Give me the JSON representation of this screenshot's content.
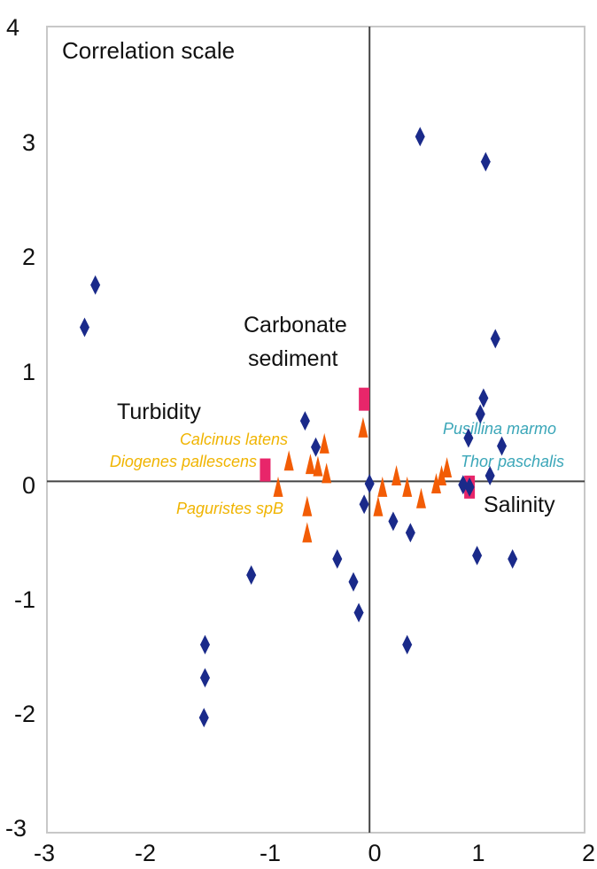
{
  "chart_data": {
    "type": "scatter",
    "title": "Correlation scale",
    "xlim": [
      -3,
      2
    ],
    "ylim": [
      -3,
      4
    ],
    "x_ticks": [
      "-3",
      "-2",
      "-1",
      "0",
      "1",
      "2"
    ],
    "y_ticks": [
      "4",
      "3",
      "2",
      "1",
      "0",
      "-1",
      "-2",
      "-3"
    ],
    "colors": {
      "sites": "#1a2a8a",
      "species": "#f25c05",
      "vectors": "#e8266a",
      "species_label_yellow": "#f0b400",
      "species_label_teal": "#3aa6b8",
      "axis": "#444444",
      "text": "#111111"
    },
    "series": [
      {
        "marker": "diamond",
        "points": [
          [
            -2.65,
            1.35
          ],
          [
            -2.55,
            1.72
          ],
          [
            -1.53,
            -1.43
          ],
          [
            -1.53,
            -1.72
          ],
          [
            -1.54,
            -2.07
          ],
          [
            -1.1,
            -0.82
          ],
          [
            -0.6,
            0.53
          ],
          [
            -0.5,
            0.3
          ],
          [
            -0.3,
            -0.68
          ],
          [
            -0.15,
            -0.88
          ],
          [
            -0.1,
            -1.15
          ],
          [
            -0.05,
            -0.2
          ],
          [
            0.0,
            -0.02
          ],
          [
            0.22,
            -0.35
          ],
          [
            0.35,
            -1.43
          ],
          [
            0.38,
            -0.45
          ],
          [
            0.47,
            3.02
          ],
          [
            0.87,
            -0.03
          ],
          [
            0.92,
            0.38
          ],
          [
            0.93,
            -0.05
          ],
          [
            1.0,
            -0.65
          ],
          [
            1.03,
            0.59
          ],
          [
            1.06,
            0.73
          ],
          [
            1.08,
            2.8
          ],
          [
            1.12,
            0.05
          ],
          [
            1.17,
            1.25
          ],
          [
            1.23,
            0.31
          ],
          [
            1.33,
            -0.68
          ]
        ]
      },
      {
        "marker": "triangle",
        "points": [
          [
            -0.75,
            0.18
          ],
          [
            -0.55,
            0.15
          ],
          [
            -0.85,
            -0.05
          ],
          [
            -0.58,
            -0.22
          ],
          [
            -0.58,
            -0.45
          ],
          [
            -0.48,
            0.13
          ],
          [
            -0.42,
            0.33
          ],
          [
            -0.4,
            0.07
          ],
          [
            -0.06,
            0.47
          ],
          [
            0.08,
            -0.22
          ],
          [
            0.12,
            -0.05
          ],
          [
            0.25,
            0.05
          ],
          [
            0.35,
            -0.05
          ],
          [
            0.48,
            -0.15
          ],
          [
            0.62,
            -0.02
          ],
          [
            0.67,
            0.05
          ],
          [
            0.72,
            0.12
          ]
        ]
      }
    ],
    "vectors": [
      {
        "label_lines": [
          "Carbonate",
          "sediment"
        ],
        "x": -0.05,
        "y": 0.72
      },
      {
        "label_lines": [
          "Turbidity"
        ],
        "x": -0.97,
        "y": 0.1
      },
      {
        "label_lines": [
          "Salinity"
        ],
        "x": 0.93,
        "y": -0.05
      }
    ],
    "species_labels": [
      {
        "text": "Calcinus latens",
        "color": "yellow"
      },
      {
        "text": "Diogenes pallescens",
        "color": "yellow"
      },
      {
        "text": "Paguristes spB",
        "color": "yellow"
      },
      {
        "text": "Pusillina marmo",
        "color": "teal"
      },
      {
        "text": "Thor paschalis",
        "color": "teal"
      }
    ]
  }
}
